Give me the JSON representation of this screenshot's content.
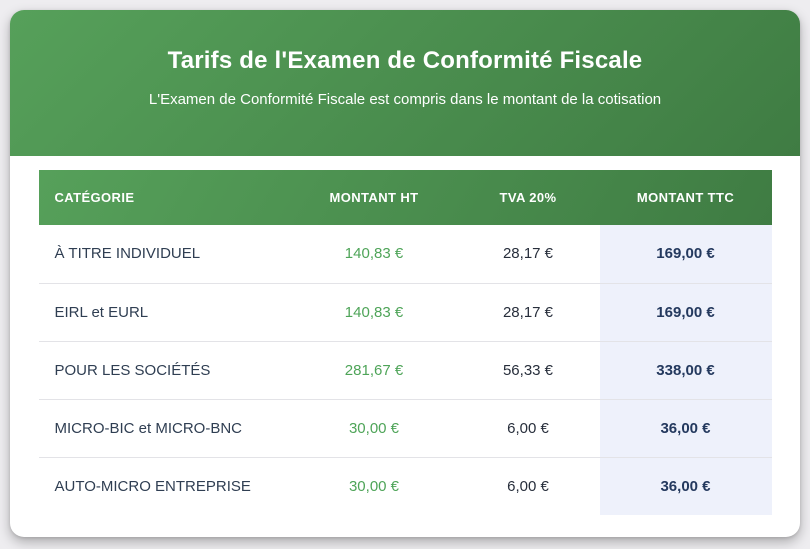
{
  "header": {
    "title": "Tarifs de l'Examen de Conformité Fiscale",
    "subtitle": "L'Examen de Conformité Fiscale est compris dans le montant de la cotisation"
  },
  "table": {
    "columns": [
      "CATÉGORIE",
      "MONTANT HT",
      "TVA 20%",
      "MONTANT TTC"
    ],
    "rows": [
      {
        "category": "À TITRE INDIVIDUEL",
        "montant_ht": "140,83 €",
        "tva": "28,17 €",
        "montant_ttc": "169,00 €"
      },
      {
        "category": "EIRL et EURL",
        "montant_ht": "140,83 €",
        "tva": "28,17 €",
        "montant_ttc": "169,00 €"
      },
      {
        "category": "POUR LES SOCIÉTÉS",
        "montant_ht": "281,67 €",
        "tva": "56,33 €",
        "montant_ttc": "338,00 €"
      },
      {
        "category": "MICRO-BIC et MICRO-BNC",
        "montant_ht": "30,00 €",
        "tva": "6,00 €",
        "montant_ttc": "36,00 €"
      },
      {
        "category": "AUTO-MICRO ENTREPRISE",
        "montant_ht": "30,00 €",
        "tva": "6,00 €",
        "montant_ttc": "36,00 €"
      }
    ]
  },
  "colors": {
    "green_gradient_start": "#56a05a",
    "green_gradient_end": "#3f7c43",
    "ht_value_text": "#4ea458",
    "ttc_value_text": "#24395e",
    "ttc_column_background": "#eef1fb",
    "category_text": "#2f3e52",
    "tva_value_text": "#272e3b",
    "page_background": "#eeedf0"
  }
}
